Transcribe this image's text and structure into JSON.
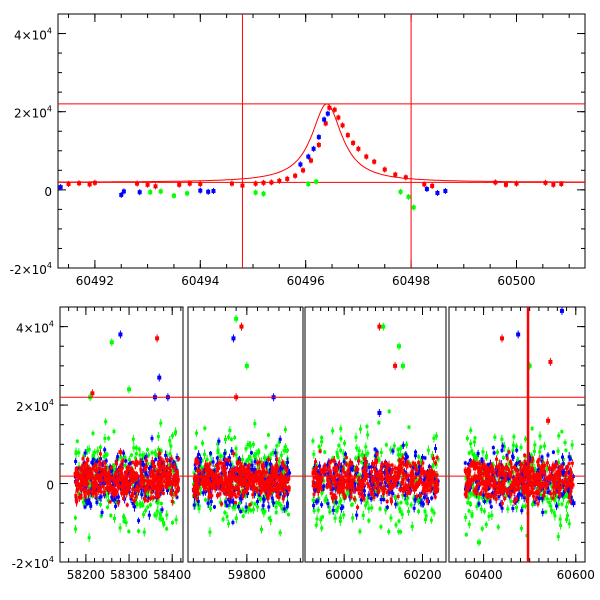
{
  "chart_data": [
    {
      "type": "scatter",
      "title": "",
      "xlabel": "",
      "ylabel": "",
      "xlim": [
        60491.3,
        60501.3
      ],
      "ylim": [
        -20000,
        45000
      ],
      "x_ticks": [
        60492,
        60494,
        60496,
        60498,
        60500
      ],
      "x_tick_labels": [
        "60492",
        "60494",
        "60496",
        "60498",
        "60500"
      ],
      "y_ticks": [
        -20000,
        0,
        20000,
        40000
      ],
      "y_tick_labels": [
        {
          "mantissa": "-2×10",
          "exp": "4"
        },
        {
          "mantissa": "0",
          "exp": ""
        },
        {
          "mantissa": "2×10",
          "exp": "4"
        },
        {
          "mantissa": "4×10",
          "exp": "4"
        }
      ],
      "series": [
        {
          "color": "#ff0000",
          "points": [
            [
              60491.5,
              1500
            ],
            [
              60491.7,
              1700
            ],
            [
              60491.9,
              1400
            ],
            [
              60492.0,
              1800
            ],
            [
              60492.8,
              1600
            ],
            [
              60493.0,
              1300
            ],
            [
              60493.15,
              900
            ],
            [
              60493.6,
              1300
            ],
            [
              60493.8,
              1600
            ],
            [
              60494.0,
              1500
            ],
            [
              60494.6,
              1600
            ],
            [
              60494.8,
              1100
            ],
            [
              60495.05,
              1600
            ],
            [
              60495.2,
              1800
            ],
            [
              60495.35,
              1900
            ],
            [
              60495.5,
              2300
            ],
            [
              60495.65,
              2800
            ],
            [
              60495.8,
              3600
            ],
            [
              60495.95,
              5000
            ],
            [
              60496.1,
              7500
            ],
            [
              60496.25,
              11500
            ],
            [
              60496.38,
              17000
            ],
            [
              60496.45,
              21000
            ],
            [
              60496.55,
              20500
            ],
            [
              60496.62,
              18500
            ],
            [
              60496.7,
              16500
            ],
            [
              60496.8,
              14000
            ],
            [
              60496.9,
              12000
            ],
            [
              60497.0,
              10500
            ],
            [
              60497.15,
              8500
            ],
            [
              60497.3,
              7200
            ],
            [
              60497.5,
              5200
            ],
            [
              60497.7,
              3900
            ],
            [
              60497.9,
              3200
            ],
            [
              60498.25,
              1400
            ],
            [
              60498.4,
              1000
            ],
            [
              60499.6,
              1900
            ],
            [
              60499.8,
              1300
            ],
            [
              60500.0,
              1600
            ],
            [
              60500.55,
              1800
            ],
            [
              60500.7,
              1300
            ],
            [
              60500.85,
              1500
            ]
          ]
        },
        {
          "color": "#0000ff",
          "points": [
            [
              60491.35,
              700
            ],
            [
              60492.5,
              -1300
            ],
            [
              60492.55,
              -400
            ],
            [
              60492.85,
              -600
            ],
            [
              60494.0,
              -200
            ],
            [
              60494.15,
              -500
            ],
            [
              60494.25,
              -300
            ],
            [
              60495.9,
              6500
            ],
            [
              60496.05,
              8500
            ],
            [
              60496.15,
              10500
            ],
            [
              60496.25,
              13500
            ],
            [
              60496.35,
              18000
            ],
            [
              60496.42,
              19500
            ],
            [
              60498.3,
              200
            ],
            [
              60498.5,
              -800
            ],
            [
              60498.65,
              -300
            ]
          ]
        },
        {
          "color": "#00ff00",
          "points": [
            [
              60493.05,
              -600
            ],
            [
              60493.25,
              -400
            ],
            [
              60493.5,
              -1500
            ],
            [
              60493.75,
              -900
            ],
            [
              60495.05,
              -700
            ],
            [
              60495.2,
              -1000
            ],
            [
              60496.05,
              1500
            ],
            [
              60496.2,
              2100
            ],
            [
              60497.8,
              -500
            ],
            [
              60497.95,
              -1800
            ],
            [
              60498.05,
              -4500
            ]
          ]
        }
      ],
      "model_curve": {
        "color": "#ff0000",
        "shape": "lorentzian",
        "center": 60496.4,
        "peak": 22000,
        "baseline": 1900,
        "half_width": 0.35,
        "x_range": [
          60491.3,
          60501.3
        ]
      },
      "horizontal_lines": [
        22000,
        1900
      ],
      "vertical_lines": [
        60494.8,
        60498.0
      ],
      "grid": false
    },
    {
      "type": "scatter",
      "title": "",
      "xlabel": "",
      "ylabel": "",
      "ylim": [
        -20000,
        45000
      ],
      "segments": [
        {
          "xlim": [
            58140,
            58425
          ],
          "x_ticks": [
            58200,
            58300,
            58400
          ],
          "x_tick_labels": [
            "58200",
            "58300",
            "58400"
          ]
        },
        {
          "xlim": [
            59690,
            59905
          ],
          "x_ticks": [
            59800
          ],
          "x_tick_labels": [
            "59800"
          ]
        },
        {
          "xlim": [
            59900,
            60260
          ],
          "x_ticks": [
            60000,
            60200
          ],
          "x_tick_labels": [
            "60000",
            "60200"
          ]
        },
        {
          "xlim": [
            60325,
            60620
          ],
          "x_ticks": [
            60400,
            60600
          ],
          "x_tick_labels": [
            "60400",
            "60600"
          ]
        }
      ],
      "y_ticks": [
        -20000,
        0,
        20000,
        40000
      ],
      "y_tick_labels": [
        {
          "mantissa": "-2×10",
          "exp": "4"
        },
        {
          "mantissa": "0",
          "exp": ""
        },
        {
          "mantissa": "2×10",
          "exp": "4"
        },
        {
          "mantissa": "4×10",
          "exp": "4"
        }
      ],
      "season_data_ranges": [
        [
          58175,
          58415
        ],
        [
          59700,
          59880
        ],
        [
          59920,
          60240
        ],
        [
          60360,
          60595
        ]
      ],
      "value_spread": {
        "mean": 1000,
        "red_sd": 2500,
        "blue_sd": 3500,
        "green_sd": 6000
      },
      "outliers": [
        {
          "color": "#ff0000",
          "points": [
            [
              58365,
              37000
            ],
            [
              58215,
              23000
            ],
            [
              58280,
              8000
            ],
            [
              59790,
              40000
            ],
            [
              59780,
              22000
            ],
            [
              60090,
              40000
            ],
            [
              60130,
              30000
            ],
            [
              60440,
              37000
            ],
            [
              60545,
              31000
            ],
            [
              60540,
              16000
            ]
          ]
        },
        {
          "color": "#0000ff",
          "points": [
            [
              58280,
              38000
            ],
            [
              58370,
              27000
            ],
            [
              58360,
              22000
            ],
            [
              58390,
              22000
            ],
            [
              59775,
              37000
            ],
            [
              59850,
              22000
            ],
            [
              60090,
              18000
            ],
            [
              60475,
              38000
            ],
            [
              60570,
              44000
            ],
            [
              60595,
              -5000
            ]
          ]
        },
        {
          "color": "#00ff00",
          "points": [
            [
              58260,
              36000
            ],
            [
              58210,
              22000
            ],
            [
              58300,
              24000
            ],
            [
              59780,
              42000
            ],
            [
              59800,
              30000
            ],
            [
              60100,
              40000
            ],
            [
              60140,
              35000
            ],
            [
              60150,
              30000
            ],
            [
              60500,
              30000
            ],
            [
              60390,
              -15000
            ]
          ]
        }
      ],
      "horizontal_lines": [
        22000,
        1900
      ],
      "vertical_lines": [
        60496.4
      ],
      "grid": false
    }
  ]
}
